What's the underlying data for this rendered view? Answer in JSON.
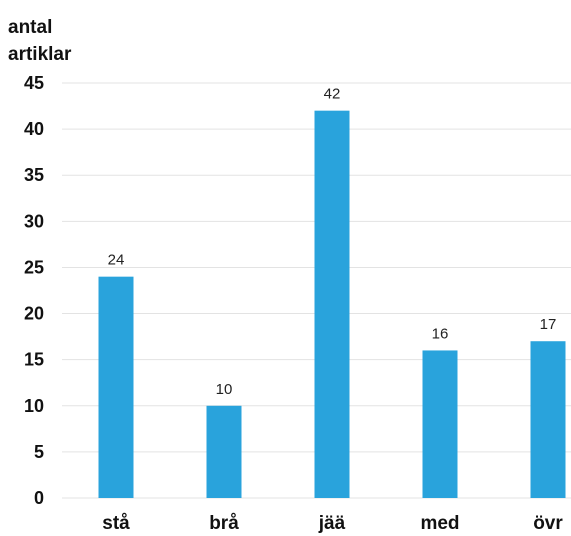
{
  "chart_data": {
    "type": "bar",
    "title": "",
    "ylabel_lines": [
      "antal",
      "artiklar"
    ],
    "xlabel": "",
    "categories": [
      "stå",
      "brå",
      "jää",
      "med",
      "övr"
    ],
    "values": [
      24,
      10,
      42,
      16,
      17
    ],
    "data_labels": [
      "24",
      "10",
      "42",
      "16",
      "17"
    ],
    "ylim": [
      0,
      45
    ],
    "yticks": [
      "0",
      "5",
      "10",
      "15",
      "20",
      "25",
      "30",
      "35",
      "40",
      "45"
    ],
    "grid": true,
    "bar_color": "#29a3dc"
  }
}
